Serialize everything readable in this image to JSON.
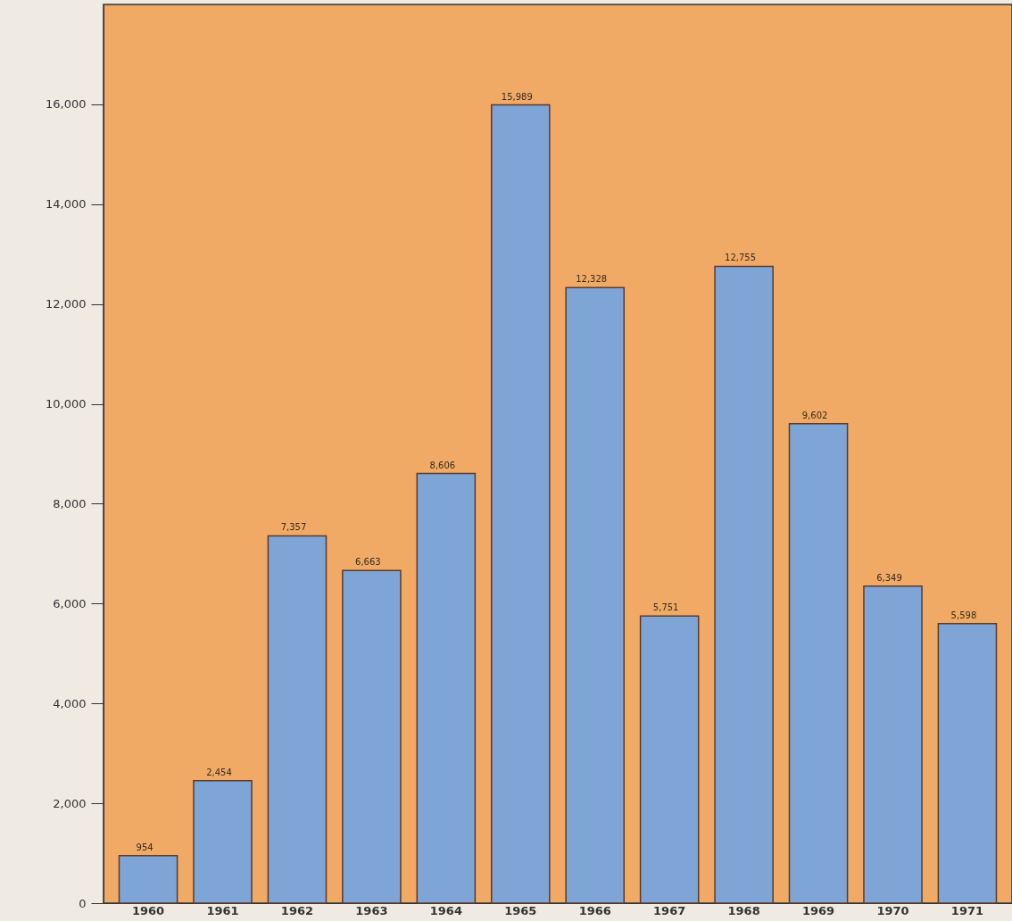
{
  "chart_data": {
    "type": "bar",
    "categories": [
      "1960",
      "1961",
      "1962",
      "1963",
      "1964",
      "1965",
      "1966",
      "1967",
      "1968",
      "1969",
      "1970",
      "1971"
    ],
    "values": [
      954,
      2454,
      7357,
      6663,
      8606,
      15989,
      12328,
      5751,
      12755,
      9602,
      6349,
      5598
    ],
    "value_labels": [
      "954",
      "2,454",
      "7,357",
      "6,663",
      "8,606",
      "15,989",
      "12,328",
      "5,751",
      "12,755",
      "9,602",
      "6,349",
      "5,598"
    ],
    "color": "#7fa5d6",
    "ylim": [
      0,
      18000
    ],
    "yticks": [
      {
        "value": 0,
        "label": "0"
      },
      {
        "value": 2000,
        "label": "2,000"
      },
      {
        "value": 4000,
        "label": "4,000"
      },
      {
        "value": 6000,
        "label": "6,000"
      },
      {
        "value": 8000,
        "label": "8,000"
      },
      {
        "value": 10000,
        "label": "10,000"
      },
      {
        "value": 12000,
        "label": "12,000"
      },
      {
        "value": 14000,
        "label": "14,000"
      },
      {
        "value": 16000,
        "label": "16,000"
      }
    ],
    "grid": false
  }
}
